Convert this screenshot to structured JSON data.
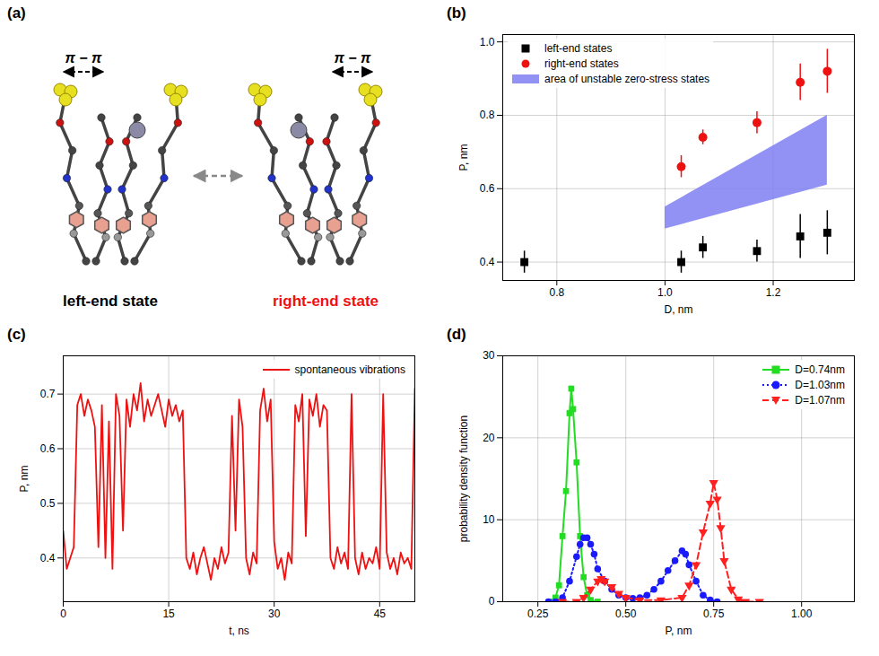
{
  "diagram": {
    "panel": "(a)",
    "states": [
      {
        "label": "left-end state",
        "bond_label": "π − π"
      },
      {
        "label": "right-end state",
        "bond_label": "π − π"
      }
    ]
  },
  "chart_data": [
    {
      "panel": "(b)",
      "type": "scatter",
      "x_label": "D, nm",
      "y_label": "P, nm",
      "xlim": [
        0.7,
        1.35
      ],
      "ylim": [
        0.35,
        1.02
      ],
      "xticks": [
        0.8,
        {
          "value": 1,
          "label": "1.0"
        },
        1.2
      ],
      "yticks": [
        0.4,
        0.6,
        0.8,
        {
          "value": 1,
          "label": "1.0"
        }
      ],
      "grid": true,
      "legend": "upper left",
      "series": [
        {
          "name": "left-end states",
          "color": "#000000",
          "marker": "square",
          "x": [
            0.74,
            1.03,
            1.07,
            1.17,
            1.25,
            1.3
          ],
          "values": [
            0.4,
            0.4,
            0.44,
            0.43,
            0.47,
            0.48
          ],
          "errors": [
            0.03,
            0.03,
            0.03,
            0.03,
            0.06,
            0.06
          ]
        },
        {
          "name": "right-end states",
          "color": "#ee1111",
          "marker": "circle",
          "x": [
            1.03,
            1.07,
            1.17,
            1.25,
            1.3
          ],
          "values": [
            0.66,
            0.74,
            0.78,
            0.89,
            0.92
          ],
          "errors": [
            0.03,
            0.02,
            0.03,
            0.05,
            0.06
          ]
        },
        {
          "name": "area of unstable zero-stress states",
          "type": "area",
          "color": "#7f7ff2",
          "x": [
            1.0,
            1.3
          ],
          "lower": [
            0.49,
            0.61
          ],
          "upper": [
            0.55,
            0.8
          ]
        }
      ]
    },
    {
      "panel": "(c)",
      "type": "line",
      "x_label": "t, ns",
      "y_label": "P, nm",
      "xlim": [
        0,
        50
      ],
      "ylim": [
        0.32,
        0.77
      ],
      "xticks": [
        0,
        15,
        30,
        45
      ],
      "yticks": [
        0.4,
        0.5,
        0.6,
        0.7
      ],
      "grid": true,
      "legend": "upper right",
      "x": [
        0,
        0.5,
        1,
        1.5,
        2,
        2.5,
        3,
        3.5,
        4,
        4.5,
        5,
        5.5,
        6,
        6.5,
        7,
        7.5,
        8,
        8.5,
        9,
        9.5,
        10,
        10.5,
        11,
        11.5,
        12,
        12.5,
        13,
        13.5,
        14,
        14.5,
        15,
        15.5,
        16,
        16.5,
        17,
        17.5,
        18,
        18.5,
        19,
        19.5,
        20,
        20.5,
        21,
        21.5,
        22,
        22.5,
        23,
        23.5,
        24,
        24.5,
        25,
        25.5,
        26,
        26.5,
        27,
        27.5,
        28,
        28.5,
        29,
        29.5,
        30,
        30.5,
        31,
        31.5,
        32,
        32.5,
        33,
        33.5,
        34,
        34.5,
        35,
        35.5,
        36,
        36.5,
        37,
        37.5,
        38,
        38.5,
        39,
        39.5,
        40,
        40.5,
        41,
        41.5,
        42,
        42.5,
        43,
        43.5,
        44,
        44.5,
        45,
        45.5,
        46,
        46.5,
        47,
        47.5,
        48,
        48.5,
        49,
        49.5,
        50
      ],
      "series": [
        {
          "name": "spontaneous vibrations",
          "color": "#ee1111",
          "line_style": "solid",
          "values": [
            0.45,
            0.38,
            0.4,
            0.42,
            0.68,
            0.7,
            0.66,
            0.69,
            0.67,
            0.64,
            0.42,
            0.68,
            0.4,
            0.65,
            0.38,
            0.7,
            0.66,
            0.45,
            0.69,
            0.64,
            0.7,
            0.67,
            0.72,
            0.65,
            0.69,
            0.66,
            0.68,
            0.7,
            0.67,
            0.64,
            0.69,
            0.66,
            0.68,
            0.65,
            0.67,
            0.4,
            0.38,
            0.41,
            0.37,
            0.4,
            0.42,
            0.39,
            0.36,
            0.4,
            0.38,
            0.42,
            0.39,
            0.41,
            0.66,
            0.45,
            0.69,
            0.64,
            0.4,
            0.37,
            0.41,
            0.39,
            0.67,
            0.71,
            0.65,
            0.69,
            0.43,
            0.38,
            0.4,
            0.36,
            0.41,
            0.39,
            0.68,
            0.65,
            0.7,
            0.44,
            0.69,
            0.66,
            0.7,
            0.64,
            0.68,
            0.67,
            0.4,
            0.38,
            0.42,
            0.39,
            0.41,
            0.38,
            0.7,
            0.4,
            0.37,
            0.41,
            0.38,
            0.4,
            0.39,
            0.42,
            0.38,
            0.7,
            0.41,
            0.38,
            0.4,
            0.37,
            0.41,
            0.39,
            0.4,
            0.38,
            0.71
          ]
        }
      ]
    },
    {
      "panel": "(d)",
      "type": "line",
      "x_label": "P, nm",
      "y_label": "probability density function",
      "xlim": [
        0.15,
        1.15
      ],
      "ylim": [
        0,
        30
      ],
      "xticks": [
        0.25,
        {
          "value": 0.5,
          "label": "0.50"
        },
        0.75,
        {
          "value": 1,
          "label": "1.00"
        }
      ],
      "yticks": [
        0,
        10,
        20,
        30
      ],
      "grid": true,
      "legend": "upper right",
      "series": [
        {
          "name": "D=0.74nm",
          "color": "#22dd22",
          "marker": "square",
          "line_style": "solid",
          "x": [
            0.29,
            0.3,
            0.31,
            0.32,
            0.33,
            0.34,
            0.345,
            0.35,
            0.36,
            0.37,
            0.38,
            0.39,
            0.4,
            0.42
          ],
          "values": [
            0,
            0.5,
            2,
            8,
            13.5,
            23,
            26,
            23.5,
            17,
            8,
            3,
            0.8,
            0.2,
            0
          ]
        },
        {
          "name": "D=1.03nm",
          "color": "#1a1aff",
          "marker": "circle",
          "line_style": "dotted",
          "x": [
            0.28,
            0.3,
            0.32,
            0.34,
            0.36,
            0.37,
            0.38,
            0.39,
            0.4,
            0.41,
            0.42,
            0.44,
            0.46,
            0.48,
            0.5,
            0.52,
            0.54,
            0.56,
            0.58,
            0.6,
            0.62,
            0.64,
            0.66,
            0.67,
            0.68,
            0.7,
            0.72,
            0.74,
            0.76
          ],
          "values": [
            0,
            0,
            0.5,
            2.5,
            5.5,
            7,
            7.8,
            7.8,
            7,
            5.8,
            4,
            2.5,
            1.5,
            0.8,
            0.5,
            0.4,
            0.5,
            0.8,
            1.5,
            2.5,
            3.8,
            5,
            6.2,
            5.8,
            4.5,
            2.5,
            0.8,
            0.2,
            0
          ]
        },
        {
          "name": "D=1.07nm",
          "color": "#ff2020",
          "marker": "triangle-down",
          "line_style": "dashed",
          "x": [
            0.32,
            0.36,
            0.38,
            0.4,
            0.42,
            0.43,
            0.44,
            0.46,
            0.48,
            0.5,
            0.54,
            0.6,
            0.66,
            0.68,
            0.7,
            0.72,
            0.74,
            0.75,
            0.76,
            0.77,
            0.78,
            0.8,
            0.82,
            0.84,
            0.88
          ],
          "values": [
            0,
            0,
            0.5,
            1.5,
            2.5,
            2.8,
            2.5,
            1.8,
            1,
            0.5,
            0.2,
            0.2,
            0.5,
            2,
            4.5,
            8.5,
            12,
            14.5,
            12.5,
            9,
            5,
            1.5,
            0.3,
            0,
            0
          ]
        }
      ]
    }
  ]
}
